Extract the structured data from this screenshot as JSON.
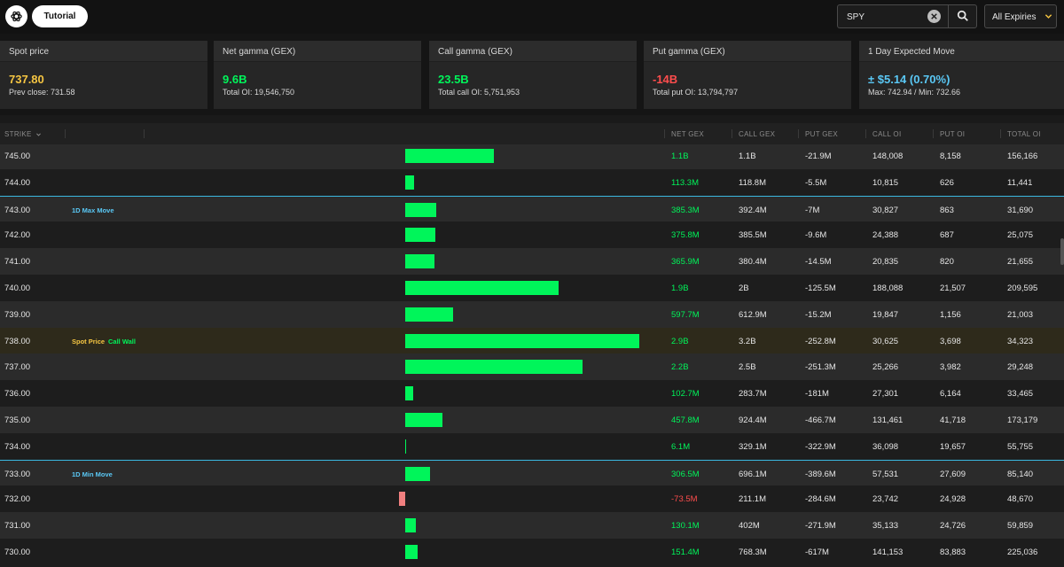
{
  "topbar": {
    "tutorial_label": "Tutorial",
    "search_value": "SPY",
    "expiry_label": "All Expiries"
  },
  "colors": {
    "positive": "#00f55a",
    "negative": "#ff4d4d",
    "neg_bar": "#f07f7f",
    "spot": "#f5c542",
    "accent_cyan": "#5ac8f5"
  },
  "cards": [
    {
      "title": "Spot price",
      "value": "737.80",
      "sub": "Prev close: 731.58",
      "tone": "spot"
    },
    {
      "title": "Net gamma (GEX)",
      "value": "9.6B",
      "sub": "Total OI: 19,546,750",
      "tone": "positive"
    },
    {
      "title": "Call gamma (GEX)",
      "value": "23.5B",
      "sub": "Total call OI: 5,751,953",
      "tone": "positive"
    },
    {
      "title": "Put gamma (GEX)",
      "value": "-14B",
      "sub": "Total put OI: 13,794,797",
      "tone": "negative"
    },
    {
      "title": "1 Day Expected Move",
      "value": "± $5.14 (0.70%)",
      "sub": "Max: 742.94 / Min: 732.66",
      "tone": "cyan"
    }
  ],
  "table": {
    "headers": {
      "strike": "STRIKE",
      "net_gex": "NET GEX",
      "call_gex": "CALL GEX",
      "put_gex": "PUT GEX",
      "call_oi": "CALL OI",
      "put_oi": "PUT OI",
      "total_oi": "TOTAL OI"
    },
    "rows": [
      {
        "strike": "745.00",
        "net_gex": "1.1B",
        "call_gex": "1.1B",
        "put_gex": "-21.9M",
        "call_oi": "148,008",
        "put_oi": "8,158",
        "total_oi": "156,166",
        "bar": 1.1,
        "tags": []
      },
      {
        "strike": "744.00",
        "net_gex": "113.3M",
        "call_gex": "118.8M",
        "put_gex": "-5.5M",
        "call_oi": "10,815",
        "put_oi": "626",
        "total_oi": "11,441",
        "bar": 0.1133,
        "tags": []
      },
      {
        "strike": "743.00",
        "net_gex": "385.3M",
        "call_gex": "392.4M",
        "put_gex": "-7M",
        "call_oi": "30,827",
        "put_oi": "863",
        "total_oi": "31,690",
        "bar": 0.3853,
        "tags": [
          {
            "text": "1D Max Move",
            "tone": "cyan"
          }
        ],
        "bordered": true
      },
      {
        "strike": "742.00",
        "net_gex": "375.8M",
        "call_gex": "385.5M",
        "put_gex": "-9.6M",
        "call_oi": "24,388",
        "put_oi": "687",
        "total_oi": "25,075",
        "bar": 0.3758,
        "tags": []
      },
      {
        "strike": "741.00",
        "net_gex": "365.9M",
        "call_gex": "380.4M",
        "put_gex": "-14.5M",
        "call_oi": "20,835",
        "put_oi": "820",
        "total_oi": "21,655",
        "bar": 0.3659,
        "tags": []
      },
      {
        "strike": "740.00",
        "net_gex": "1.9B",
        "call_gex": "2B",
        "put_gex": "-125.5M",
        "call_oi": "188,088",
        "put_oi": "21,507",
        "total_oi": "209,595",
        "bar": 1.9,
        "tags": []
      },
      {
        "strike": "739.00",
        "net_gex": "597.7M",
        "call_gex": "612.9M",
        "put_gex": "-15.2M",
        "call_oi": "19,847",
        "put_oi": "1,156",
        "total_oi": "21,003",
        "bar": 0.5977,
        "tags": []
      },
      {
        "strike": "738.00",
        "net_gex": "2.9B",
        "call_gex": "3.2B",
        "put_gex": "-252.8M",
        "call_oi": "30,625",
        "put_oi": "3,698",
        "total_oi": "34,323",
        "bar": 2.9,
        "tags": [
          {
            "text": "Spot Price",
            "tone": "spot"
          },
          {
            "text": "Call Wall",
            "tone": "positive"
          }
        ],
        "spot": true
      },
      {
        "strike": "737.00",
        "net_gex": "2.2B",
        "call_gex": "2.5B",
        "put_gex": "-251.3M",
        "call_oi": "25,266",
        "put_oi": "3,982",
        "total_oi": "29,248",
        "bar": 2.2,
        "tags": []
      },
      {
        "strike": "736.00",
        "net_gex": "102.7M",
        "call_gex": "283.7M",
        "put_gex": "-181M",
        "call_oi": "27,301",
        "put_oi": "6,164",
        "total_oi": "33,465",
        "bar": 0.1027,
        "tags": []
      },
      {
        "strike": "735.00",
        "net_gex": "457.8M",
        "call_gex": "924.4M",
        "put_gex": "-466.7M",
        "call_oi": "131,461",
        "put_oi": "41,718",
        "total_oi": "173,179",
        "bar": 0.4578,
        "tags": []
      },
      {
        "strike": "734.00",
        "net_gex": "6.1M",
        "call_gex": "329.1M",
        "put_gex": "-322.9M",
        "call_oi": "36,098",
        "put_oi": "19,657",
        "total_oi": "55,755",
        "bar": 0.0061,
        "tags": []
      },
      {
        "strike": "733.00",
        "net_gex": "306.5M",
        "call_gex": "696.1M",
        "put_gex": "-389.6M",
        "call_oi": "57,531",
        "put_oi": "27,609",
        "total_oi": "85,140",
        "bar": 0.3065,
        "tags": [
          {
            "text": "1D Min Move",
            "tone": "cyan"
          }
        ],
        "bordered": true
      },
      {
        "strike": "732.00",
        "net_gex": "-73.5M",
        "call_gex": "211.1M",
        "put_gex": "-284.6M",
        "call_oi": "23,742",
        "put_oi": "24,928",
        "total_oi": "48,670",
        "bar": -0.0735,
        "tags": []
      },
      {
        "strike": "731.00",
        "net_gex": "130.1M",
        "call_gex": "402M",
        "put_gex": "-271.9M",
        "call_oi": "35,133",
        "put_oi": "24,726",
        "total_oi": "59,859",
        "bar": 0.1301,
        "tags": []
      },
      {
        "strike": "730.00",
        "net_gex": "151.4M",
        "call_gex": "768.3M",
        "put_gex": "-617M",
        "call_oi": "141,153",
        "put_oi": "83,883",
        "total_oi": "225,036",
        "bar": 0.1514,
        "tags": []
      }
    ]
  }
}
